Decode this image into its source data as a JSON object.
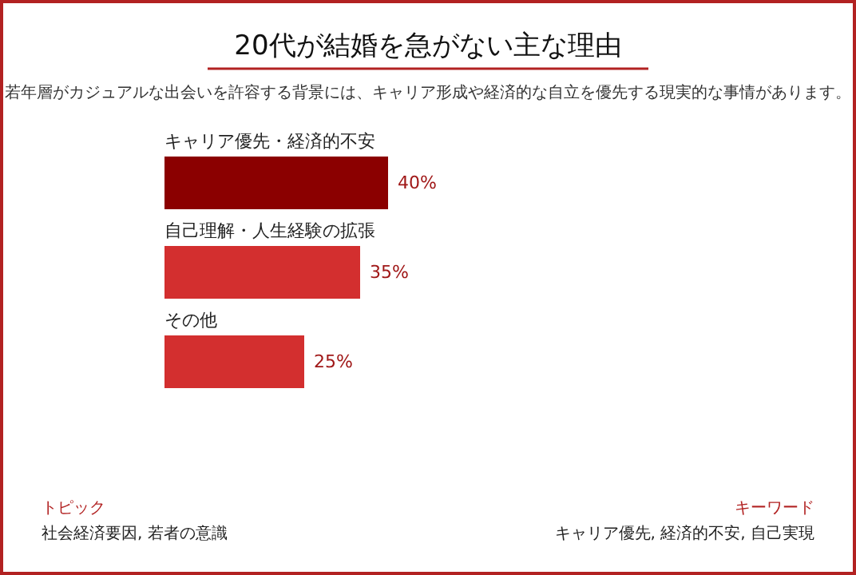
{
  "chart_data": {
    "type": "bar",
    "orientation": "horizontal",
    "title": "20代が結婚を急がない主な理由",
    "subtitle": "若年層がカジュアルな出会いを許容する背景には、キャリア形成や経済的な自立を優先する現実的な事情があります。",
    "categories": [
      "キャリア優先・経済的不安",
      "自己理解・人生経験の拡張",
      "その他"
    ],
    "values": [
      40,
      35,
      25
    ],
    "colors": [
      "#8b0000",
      "#d32f2f",
      "#d32f2f"
    ],
    "value_labels": [
      "40%",
      "35%",
      "25%"
    ],
    "annotations": [
      "トピック",
      "社会経済要因, 若者の意識",
      "キーワード",
      "キャリア優先, 経済的不安, 自己実現"
    ]
  }
}
